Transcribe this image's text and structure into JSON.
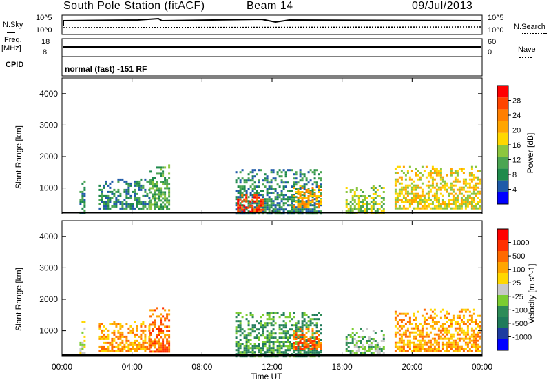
{
  "header": {
    "station": "South Pole Station (fitACF)",
    "beam": "Beam 14",
    "date": "09/Jul/2013"
  },
  "top_panels": {
    "nsky_label": "N.Sky",
    "nsearch_label": "N.Search",
    "noise_ticks_left": [
      "10^5",
      "10^0"
    ],
    "noise_ticks_right": [
      "10^5",
      "10^0"
    ],
    "freq_label": "Freq.",
    "freq_unit": "[MHz]",
    "freq_ticks": [
      "18",
      "8"
    ],
    "nave_label": "Nave",
    "nave_ticks": [
      "60",
      "0"
    ],
    "cpid_label": "CPID",
    "cpid_text": "normal (fast) -151 RF"
  },
  "power_scale": {
    "label": "Power [dB]",
    "ticks": [
      "28",
      "24",
      "20",
      "16",
      "12",
      "8",
      "4"
    ],
    "colors": [
      "#0000ff",
      "#1e5aa8",
      "#1f8a4c",
      "#4ba552",
      "#8cc63f",
      "#ffd700",
      "#ffa500",
      "#ff7f00",
      "#ff4500",
      "#ff0000"
    ]
  },
  "velocity_scale": {
    "label": "Velocity [m s^-1]",
    "ticks": [
      "1000",
      "500",
      "100",
      "25",
      "-25",
      "-100",
      "-500",
      "-1000"
    ],
    "colors": [
      "#0000ff",
      "#1e3ca0",
      "#1f7a5a",
      "#2e8b57",
      "#7ccd32",
      "#c8c8c8",
      "#ffd700",
      "#ffa500",
      "#ff6a00",
      "#ff3000",
      "#ff0000"
    ]
  },
  "chart_data": {
    "type": "heatmap",
    "xlabel": "Time UT",
    "ylabel": "Slant Range [km]",
    "x_tick_labels": [
      "00:00",
      "04:00",
      "08:00",
      "12:00",
      "16:00",
      "20:00",
      "00:00"
    ],
    "xlim_hours": [
      0,
      24
    ],
    "ylim_km": [
      180,
      4500
    ],
    "y_tick_labels": [
      "1000",
      "2000",
      "3000",
      "4000"
    ],
    "panels": [
      {
        "name": "power",
        "legend": "Power [dB]",
        "scatter_patches": [
          {
            "t_start": 1.0,
            "t_end": 1.3,
            "r_min": 180,
            "r_max": 1300,
            "level": 2
          },
          {
            "t_start": 2.1,
            "t_end": 5.0,
            "r_min": 300,
            "r_max": 1300,
            "level": 2
          },
          {
            "t_start": 5.0,
            "t_end": 6.2,
            "r_min": 300,
            "r_max": 1750,
            "level": 3
          },
          {
            "t_start": 9.9,
            "t_end": 14.8,
            "r_min": 180,
            "r_max": 1600,
            "level": 2
          },
          {
            "t_start": 10.0,
            "t_end": 11.5,
            "r_min": 200,
            "r_max": 800,
            "level": 8
          },
          {
            "t_start": 13.2,
            "t_end": 14.8,
            "r_min": 400,
            "r_max": 1100,
            "level": 6
          },
          {
            "t_start": 16.2,
            "t_end": 18.5,
            "r_min": 200,
            "r_max": 1100,
            "level": 4
          },
          {
            "t_start": 19.0,
            "t_end": 24.0,
            "r_min": 300,
            "r_max": 1700,
            "level": 5
          }
        ]
      },
      {
        "name": "velocity",
        "legend": "Velocity [m s^-1]",
        "scatter_patches": [
          {
            "t_start": 1.0,
            "t_end": 1.3,
            "r_min": 180,
            "r_max": 1300,
            "level": 5
          },
          {
            "t_start": 2.1,
            "t_end": 5.0,
            "r_min": 300,
            "r_max": 1300,
            "level": 7
          },
          {
            "t_start": 5.0,
            "t_end": 6.2,
            "r_min": 300,
            "r_max": 1750,
            "level": 8
          },
          {
            "t_start": 9.9,
            "t_end": 14.8,
            "r_min": 180,
            "r_max": 1600,
            "level": 3
          },
          {
            "t_start": 13.2,
            "t_end": 14.8,
            "r_min": 400,
            "r_max": 1100,
            "level": 8
          },
          {
            "t_start": 16.2,
            "t_end": 18.5,
            "r_min": 200,
            "r_max": 1100,
            "level": 4
          },
          {
            "t_start": 19.0,
            "t_end": 24.0,
            "r_min": 300,
            "r_max": 1700,
            "level": 7
          }
        ]
      }
    ]
  }
}
